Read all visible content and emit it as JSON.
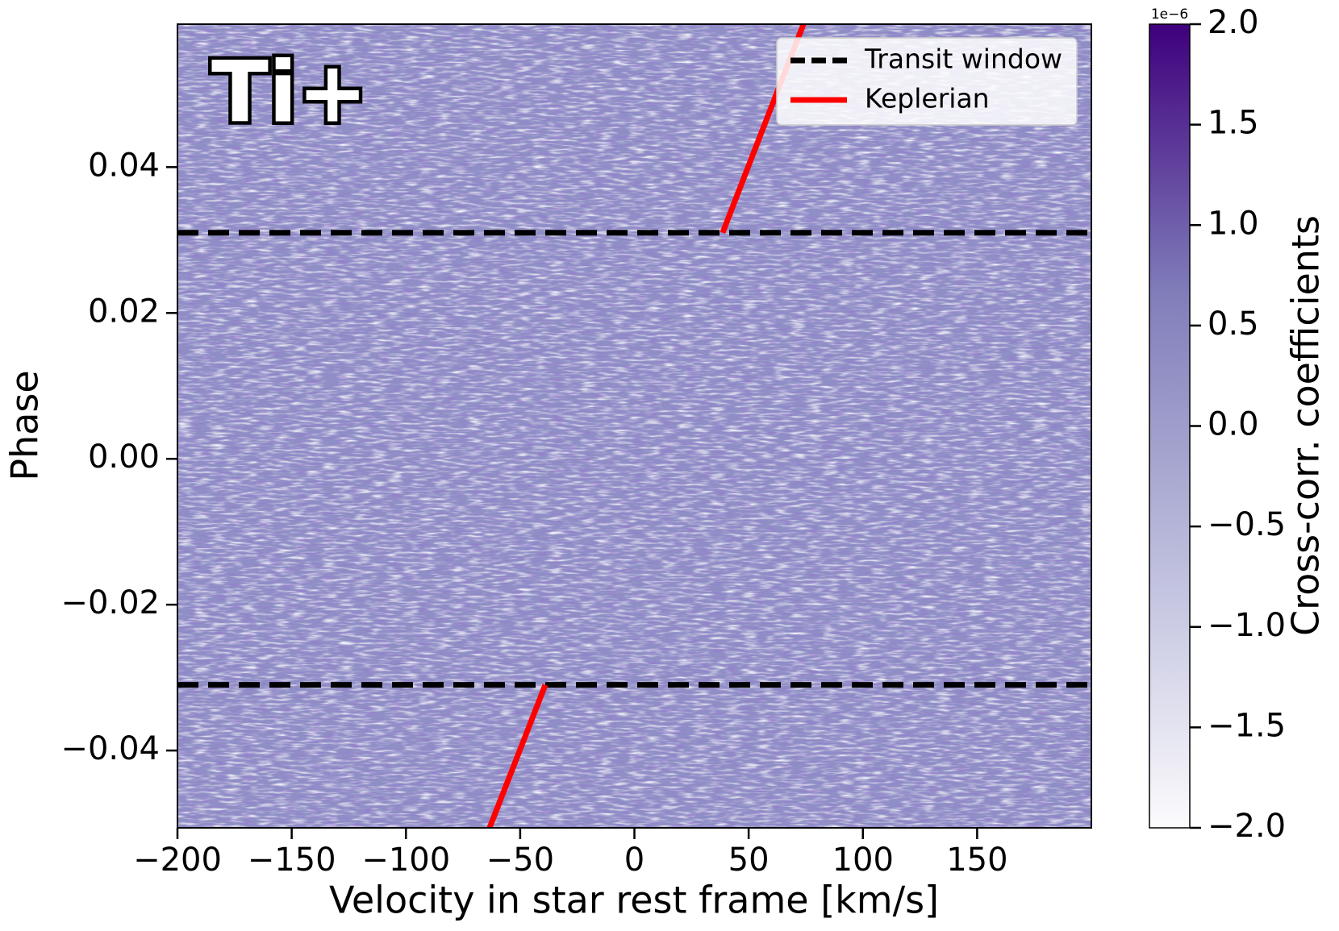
{
  "chart_data": {
    "type": "heatmap",
    "annotation": "Ti+",
    "xlabel": "Velocity in star rest frame [km/s]",
    "ylabel": "Phase",
    "xlim": [
      -200,
      200
    ],
    "ylim": [
      -0.0506,
      0.0596
    ],
    "xticks": [
      {
        "value": -200,
        "label": "−200"
      },
      {
        "value": -150,
        "label": "−150"
      },
      {
        "value": -100,
        "label": "−100"
      },
      {
        "value": -50,
        "label": "−50"
      },
      0,
      50,
      100,
      150
    ],
    "yticks": [
      {
        "value": -0.04,
        "label": "−0.04"
      },
      {
        "value": -0.02,
        "label": "−0.02"
      },
      {
        "value": 0,
        "label": "0.00"
      },
      0.02,
      0.04
    ],
    "cmap": [
      "#fcfbfd",
      "#bcbddc",
      "#807dba",
      "#3f007d"
    ],
    "hlines": {
      "name": "Transit window",
      "color": "#000000",
      "values": [
        -0.031,
        0.031
      ]
    },
    "series": [
      {
        "name": "Keplerian",
        "color": "#ff0000",
        "x": [
          -63.4,
          -39,
          null,
          38.6,
          74
        ],
        "y": [
          -0.0506,
          -0.031,
          null,
          0.031,
          0.0596
        ]
      }
    ],
    "colorbar": {
      "label": "Cross-corr. coefficients",
      "offset_label": "1e−6",
      "lim": [
        -2,
        2
      ],
      "ticks": [
        {
          "value": -2,
          "label": "−2.0"
        },
        {
          "value": -1.5,
          "label": "−1.5"
        },
        {
          "value": -1,
          "label": "−1.0"
        },
        {
          "value": -0.5,
          "label": "−0.5"
        },
        {
          "value": 0,
          "label": "0.0"
        },
        {
          "value": 0.5,
          "label": "0.5"
        },
        {
          "value": 1,
          "label": "1.0"
        },
        {
          "value": 1.5,
          "label": "1.5"
        },
        {
          "value": 2,
          "label": "2.0"
        }
      ]
    }
  }
}
